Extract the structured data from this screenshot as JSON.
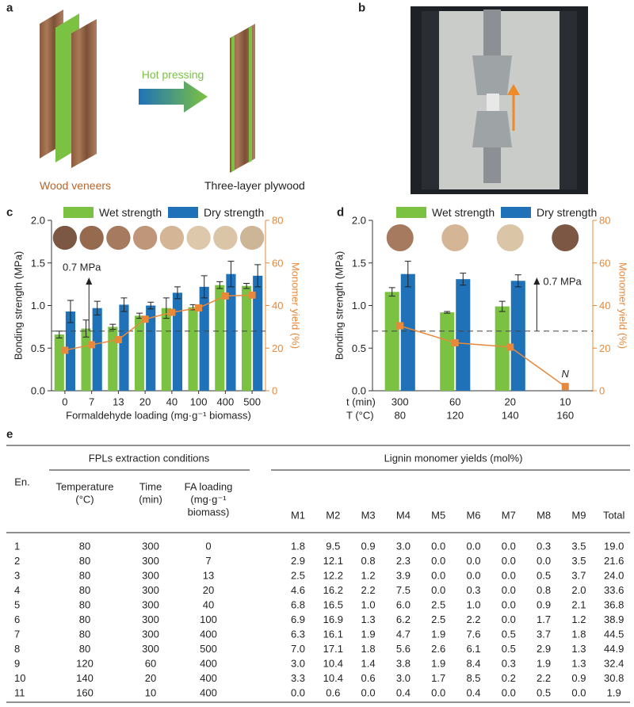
{
  "panels": {
    "a": "a",
    "b": "b",
    "c": "c",
    "d": "d",
    "e": "e"
  },
  "illustration": {
    "process": "Hot pressing",
    "input": "Wood veneers",
    "output": "Three-layer plywood"
  },
  "chart_data": [
    {
      "type": "bar",
      "y_label": "Bonding strength (MPa)",
      "y2_label": "Monomer yield (%)",
      "x_label": "Formaldehyde loading (mg·g⁻¹ biomass)",
      "categories": [
        "0",
        "7",
        "13",
        "20",
        "40",
        "100",
        "400",
        "500"
      ],
      "series": [
        {
          "name": "Wet strength",
          "color": "#7cc242",
          "values": [
            0.66,
            0.73,
            0.75,
            0.88,
            0.97,
            0.98,
            1.24,
            1.23
          ],
          "errors": [
            0.04,
            0.1,
            0.03,
            0.03,
            0.12,
            0.03,
            0.04,
            0.03
          ]
        },
        {
          "name": "Dry strength",
          "color": "#1f72b8",
          "values": [
            0.93,
            0.97,
            1.01,
            1.0,
            1.15,
            1.22,
            1.37,
            1.35
          ],
          "errors": [
            0.13,
            0.08,
            0.08,
            0.04,
            0.07,
            0.13,
            0.15,
            0.13
          ]
        },
        {
          "type": "line",
          "axis": "y2",
          "color": "#e8883a",
          "values": [
            19.0,
            21.6,
            24.0,
            33.6,
            36.8,
            38.9,
            44.5,
            44.9
          ]
        }
      ],
      "ylim": [
        0,
        2
      ],
      "yticks": [
        {
          "value": 0,
          "label": "0.0"
        },
        0.5,
        {
          "value": 1,
          "label": "1.0"
        },
        1.5,
        {
          "value": 2,
          "label": "2.0"
        }
      ],
      "y2lim": [
        0,
        80
      ],
      "y2ticks": [
        0,
        20,
        40,
        60,
        80
      ],
      "reference_line": 0.7,
      "annotation": "0.7 MPa"
    },
    {
      "type": "bar",
      "y_label": "Bonding strength (MPa)",
      "y2_label": "Monomer yield (%)",
      "category_rows": [
        {
          "label": "t (min)",
          "categories": [
            "300",
            "60",
            "20",
            "10"
          ]
        },
        {
          "label": "T (°C)",
          "categories": [
            "80",
            "120",
            "140",
            "160"
          ]
        }
      ],
      "series": [
        {
          "name": "Wet strength",
          "color": "#7cc242",
          "values": [
            1.16,
            0.92,
            0.99,
            null
          ],
          "errors": [
            0.05,
            0.01,
            0.06,
            null
          ]
        },
        {
          "name": "Dry strength",
          "color": "#1f72b8",
          "values": [
            1.37,
            1.31,
            1.29,
            null
          ],
          "errors": [
            0.15,
            0.07,
            0.07,
            null
          ]
        },
        {
          "type": "line",
          "axis": "y2",
          "color": "#e8883a",
          "values": [
            30.5,
            22.5,
            20.5,
            2
          ]
        }
      ],
      "ylim": [
        0,
        2
      ],
      "yticks": [
        {
          "value": 0,
          "label": "0.0"
        },
        0.5,
        {
          "value": 1,
          "label": "1.0"
        },
        1.5,
        {
          "value": 2,
          "label": "2.0"
        }
      ],
      "y2lim": [
        0,
        80
      ],
      "y2ticks": [
        0,
        20,
        40,
        60,
        80
      ],
      "reference_line": 0.7,
      "annotation": "0.7 MPa",
      "point_note": "N"
    }
  ],
  "table": {
    "group_headers": [
      "FPLs extraction conditions",
      "Lignin monomer yields (mol%)"
    ],
    "columns": [
      [
        "En."
      ],
      [
        "Temperature",
        "(°C)"
      ],
      [
        "Time",
        "(min)"
      ],
      [
        "FA loading",
        "(mg·g⁻¹",
        "biomass)"
      ],
      [
        "M1"
      ],
      [
        "M2"
      ],
      [
        "M3"
      ],
      [
        "M4"
      ],
      [
        "M5"
      ],
      [
        "M6"
      ],
      [
        "M7"
      ],
      [
        "M8"
      ],
      [
        "M9"
      ],
      [
        "Total"
      ]
    ],
    "rows": [
      [
        "1",
        "80",
        "300",
        "0",
        "1.8",
        "9.5",
        "0.9",
        "3.0",
        "0.0",
        "0.0",
        "0.0",
        "0.3",
        "3.5",
        "19.0"
      ],
      [
        "2",
        "80",
        "300",
        "7",
        "2.9",
        "12.1",
        "0.8",
        "2.3",
        "0.0",
        "0.0",
        "0.0",
        "0.0",
        "3.5",
        "21.6"
      ],
      [
        "3",
        "80",
        "300",
        "13",
        "2.5",
        "12.2",
        "1.2",
        "3.9",
        "0.0",
        "0.0",
        "0.0",
        "0.5",
        "3.7",
        "24.0"
      ],
      [
        "4",
        "80",
        "300",
        "20",
        "4.6",
        "16.2",
        "2.2",
        "7.5",
        "0.0",
        "0.3",
        "0.0",
        "0.8",
        "2.0",
        "33.6"
      ],
      [
        "5",
        "80",
        "300",
        "40",
        "6.8",
        "16.5",
        "1.0",
        "6.0",
        "2.5",
        "1.0",
        "0.0",
        "0.9",
        "2.1",
        "36.8"
      ],
      [
        "6",
        "80",
        "300",
        "100",
        "6.9",
        "16.9",
        "1.3",
        "6.2",
        "2.5",
        "2.2",
        "0.0",
        "1.7",
        "1.2",
        "38.9"
      ],
      [
        "7",
        "80",
        "300",
        "400",
        "6.3",
        "16.1",
        "1.9",
        "4.7",
        "1.9",
        "7.6",
        "0.5",
        "3.7",
        "1.8",
        "44.5"
      ],
      [
        "8",
        "80",
        "300",
        "500",
        "7.0",
        "17.1",
        "1.8",
        "5.6",
        "2.6",
        "6.1",
        "0.5",
        "2.9",
        "1.3",
        "44.9"
      ],
      [
        "9",
        "120",
        "60",
        "400",
        "3.0",
        "10.4",
        "1.4",
        "3.8",
        "1.9",
        "8.4",
        "0.3",
        "1.9",
        "1.3",
        "32.4"
      ],
      [
        "10",
        "140",
        "20",
        "400",
        "3.3",
        "10.4",
        "0.6",
        "3.0",
        "1.7",
        "8.5",
        "0.2",
        "2.2",
        "0.9",
        "30.8"
      ],
      [
        "11",
        "160",
        "10",
        "400",
        "0.0",
        "0.6",
        "0.0",
        "0.4",
        "0.0",
        "0.4",
        "0.0",
        "0.5",
        "0.0",
        "1.9"
      ]
    ]
  }
}
